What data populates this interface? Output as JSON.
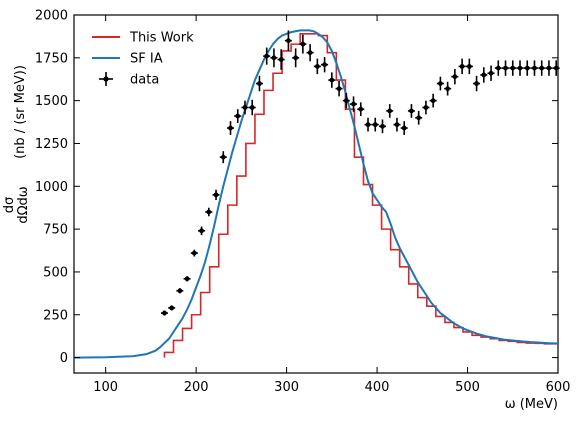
{
  "chart_data": {
    "type": "line",
    "xlabel": "ω (MeV)",
    "ylabel_fraction_num": "dσ",
    "ylabel_fraction_den": "dΩdω",
    "ylabel_units": "(nb / (sr MeV))",
    "xlim": [
      65,
      600
    ],
    "ylim": [
      -90,
      2000
    ],
    "xticks": [
      100,
      200,
      300,
      400,
      500,
      600
    ],
    "yticks": [
      0,
      250,
      500,
      750,
      1000,
      1250,
      1500,
      1750,
      2000
    ],
    "legend_position": "top-left",
    "colors": {
      "this_work": "#d62728",
      "sf_ia": "#1f77b4",
      "data": "#000000"
    },
    "series": [
      {
        "name": "This Work",
        "kind": "step",
        "edges": [
          165,
          175,
          185,
          195,
          205,
          215,
          225,
          235,
          245,
          255,
          265,
          275,
          285,
          295,
          305,
          315,
          325,
          335,
          345,
          355,
          365,
          375,
          385,
          395,
          405,
          415,
          425,
          435,
          445,
          455,
          465,
          475,
          485,
          495,
          505,
          515,
          525,
          535,
          545,
          555,
          565,
          575,
          585,
          595,
          600
        ],
        "values": [
          30,
          100,
          170,
          250,
          380,
          530,
          720,
          890,
          1060,
          1250,
          1420,
          1560,
          1660,
          1790,
          1830,
          1890,
          1890,
          1880,
          1780,
          1620,
          1450,
          1170,
          1010,
          890,
          750,
          630,
          530,
          430,
          350,
          300,
          240,
          205,
          175,
          150,
          130,
          120,
          110,
          100,
          95,
          88,
          85,
          83,
          80,
          80
        ]
      },
      {
        "name": "SF IA",
        "kind": "line",
        "x": [
          65,
          100,
          130,
          145,
          155,
          160,
          165,
          170,
          175,
          180,
          185,
          190,
          195,
          200,
          205,
          210,
          215,
          220,
          225,
          230,
          235,
          240,
          245,
          250,
          255,
          260,
          265,
          270,
          275,
          280,
          285,
          290,
          295,
          300,
          305,
          310,
          315,
          320,
          325,
          330,
          335,
          340,
          345,
          350,
          355,
          360,
          365,
          370,
          375,
          380,
          385,
          390,
          395,
          400,
          405,
          410,
          415,
          420,
          425,
          430,
          435,
          440,
          445,
          450,
          455,
          460,
          465,
          470,
          475,
          480,
          485,
          490,
          495,
          500,
          510,
          520,
          530,
          540,
          550,
          560,
          570,
          580,
          590,
          600
        ],
        "y": [
          0,
          2,
          8,
          20,
          40,
          60,
          85,
          110,
          150,
          190,
          230,
          280,
          340,
          410,
          480,
          560,
          660,
          770,
          890,
          1000,
          1100,
          1200,
          1290,
          1380,
          1460,
          1540,
          1620,
          1680,
          1740,
          1790,
          1830,
          1860,
          1880,
          1890,
          1900,
          1905,
          1910,
          1910,
          1910,
          1905,
          1890,
          1870,
          1840,
          1790,
          1720,
          1640,
          1550,
          1450,
          1350,
          1240,
          1130,
          1030,
          960,
          920,
          880,
          850,
          780,
          700,
          640,
          590,
          540,
          490,
          440,
          400,
          360,
          320,
          290,
          260,
          240,
          220,
          200,
          185,
          170,
          160,
          140,
          125,
          115,
          105,
          100,
          95,
          90,
          87,
          84,
          82
        ]
      },
      {
        "name": "data",
        "kind": "points",
        "x": [
          165,
          173,
          182,
          190,
          198,
          206,
          214,
          222,
          230,
          238,
          246,
          254,
          262,
          270,
          278,
          286,
          294,
          302,
          310,
          318,
          326,
          334,
          342,
          350,
          358,
          366,
          374,
          382,
          390,
          398,
          406,
          414,
          422,
          430,
          438,
          446,
          454,
          462,
          470,
          478,
          486,
          494,
          502,
          510,
          518,
          526,
          534,
          542,
          550,
          558,
          566,
          574,
          582,
          590,
          598
        ],
        "y": [
          260,
          290,
          390,
          460,
          610,
          740,
          850,
          950,
          1170,
          1340,
          1410,
          1460,
          1460,
          1600,
          1760,
          1750,
          1740,
          1850,
          1750,
          1830,
          1780,
          1700,
          1710,
          1620,
          1570,
          1500,
          1480,
          1450,
          1360,
          1360,
          1350,
          1440,
          1360,
          1340,
          1440,
          1400,
          1460,
          1500,
          1600,
          1570,
          1640,
          1700,
          1700,
          1600,
          1650,
          1660,
          1690,
          1690,
          1690,
          1690,
          1690,
          1690,
          1690,
          1690,
          1690
        ],
        "yerr": [
          15,
          15,
          15,
          15,
          20,
          25,
          25,
          30,
          35,
          40,
          40,
          40,
          45,
          45,
          50,
          55,
          60,
          60,
          55,
          55,
          50,
          45,
          45,
          45,
          45,
          45,
          45,
          40,
          40,
          40,
          40,
          40,
          40,
          40,
          40,
          40,
          40,
          40,
          40,
          40,
          45,
          45,
          45,
          45,
          45,
          45,
          45,
          45,
          45,
          45,
          45,
          45,
          45,
          45,
          45
        ]
      }
    ]
  }
}
